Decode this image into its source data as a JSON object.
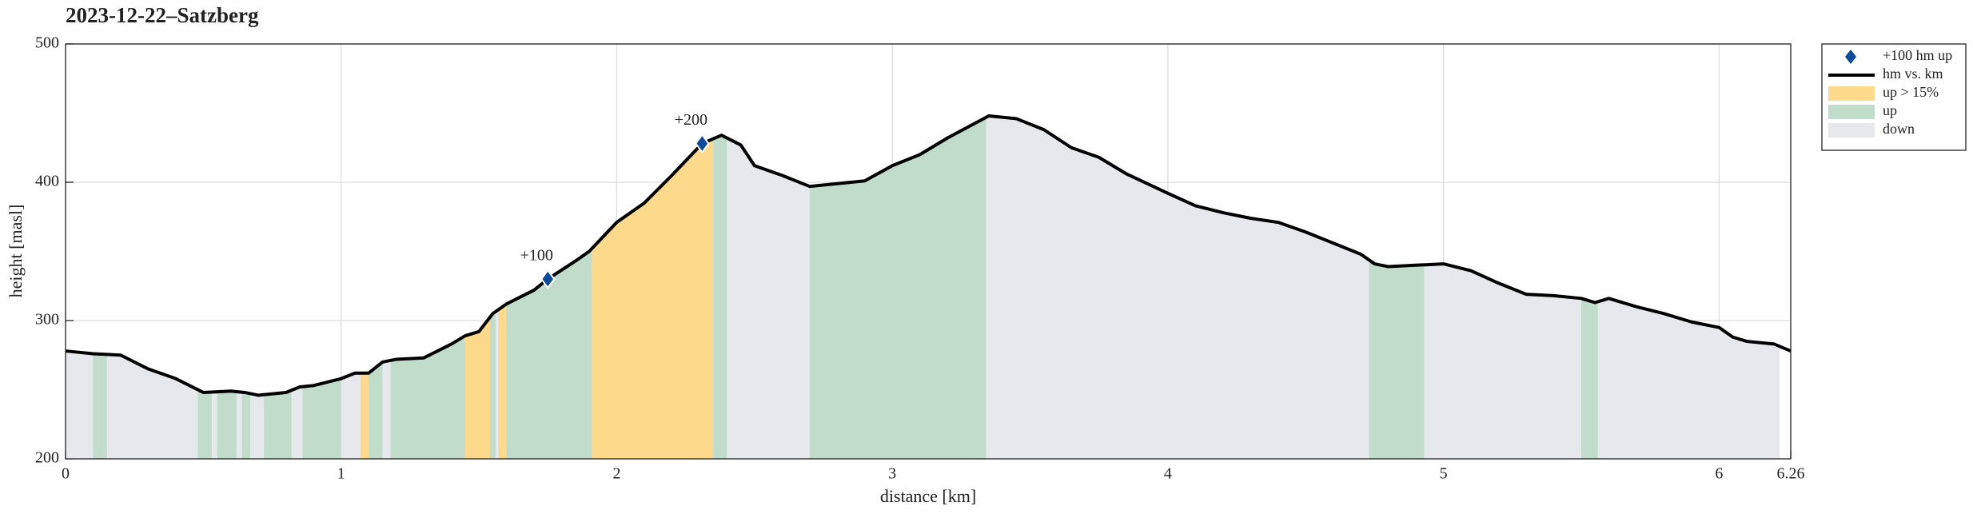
{
  "chart_data": {
    "type": "elevation-profile",
    "title": "2023-12-22–Satzberg",
    "x_label": "distance [km]",
    "y_label": "height [masl]",
    "xlim": [
      0,
      6.26
    ],
    "ylim": [
      200,
      500
    ],
    "xticks": [
      0,
      1,
      2,
      3,
      4,
      5,
      6,
      6.26
    ],
    "yticks": [
      200,
      300,
      400,
      500
    ],
    "grid": true,
    "legend": "outside-upper-right",
    "series": [
      {
        "name": "+100 hm up",
        "color": "#0d4a9a",
        "kind": "marker",
        "x": [
          1.75,
          2.31
        ],
        "values": [
          330,
          428
        ],
        "labels": [
          "+100",
          "+200"
        ]
      },
      {
        "name": "hm vs. km",
        "color": "#000000",
        "kind": "line",
        "x": [
          0,
          0.1,
          0.2,
          0.3,
          0.4,
          0.45,
          0.5,
          0.6,
          0.65,
          0.7,
          0.8,
          0.85,
          0.9,
          1.0,
          1.05,
          1.1,
          1.15,
          1.2,
          1.3,
          1.4,
          1.45,
          1.5,
          1.55,
          1.6,
          1.7,
          1.75,
          1.85,
          1.9,
          2.0,
          2.1,
          2.2,
          2.31,
          2.38,
          2.45,
          2.5,
          2.6,
          2.7,
          2.8,
          2.9,
          3.0,
          3.1,
          3.2,
          3.35,
          3.45,
          3.55,
          3.65,
          3.75,
          3.85,
          4.0,
          4.1,
          4.2,
          4.3,
          4.4,
          4.5,
          4.6,
          4.7,
          4.75,
          4.8,
          4.9,
          5.0,
          5.1,
          5.2,
          5.3,
          5.4,
          5.5,
          5.55,
          5.6,
          5.7,
          5.8,
          5.9,
          6.0,
          6.05,
          6.1,
          6.2,
          6.26
        ],
        "values": [
          278,
          276,
          275,
          265,
          258,
          253,
          248,
          249,
          248,
          246,
          248,
          252,
          253,
          258,
          262,
          262,
          270,
          272,
          273,
          283,
          289,
          292,
          305,
          312,
          322,
          330,
          343,
          350,
          371,
          385,
          405,
          428,
          434,
          427,
          412,
          405,
          397,
          399,
          401,
          412,
          420,
          432,
          448,
          446,
          438,
          425,
          418,
          406,
          392,
          383,
          378,
          374,
          371,
          364,
          356,
          348,
          341,
          339,
          340,
          341,
          336,
          327,
          319,
          318,
          316,
          313,
          316,
          310,
          305,
          299,
          295,
          288,
          285,
          283,
          278
        ]
      },
      {
        "name": "up > 15%",
        "color": "#fdd98c",
        "kind": "ranges",
        "ranges": [
          [
            1.07,
            1.1
          ],
          [
            1.45,
            1.54
          ],
          [
            1.57,
            1.6
          ],
          [
            1.91,
            2.35
          ]
        ]
      },
      {
        "name": "up",
        "color": "#c1dccb",
        "kind": "ranges",
        "ranges": [
          [
            0.1,
            0.15
          ],
          [
            0.48,
            0.53
          ],
          [
            0.55,
            0.62
          ],
          [
            0.64,
            0.67
          ],
          [
            0.72,
            0.82
          ],
          [
            0.86,
            1.0
          ],
          [
            1.1,
            1.15
          ],
          [
            1.18,
            1.45
          ],
          [
            1.54,
            1.56
          ],
          [
            1.6,
            1.91
          ],
          [
            2.35,
            2.4
          ],
          [
            2.7,
            3.34
          ],
          [
            4.73,
            4.93
          ],
          [
            5.5,
            5.56
          ]
        ]
      },
      {
        "name": "down",
        "color": "#e7e8eb",
        "kind": "ranges",
        "ranges": [
          [
            0,
            6.22
          ]
        ]
      }
    ]
  }
}
